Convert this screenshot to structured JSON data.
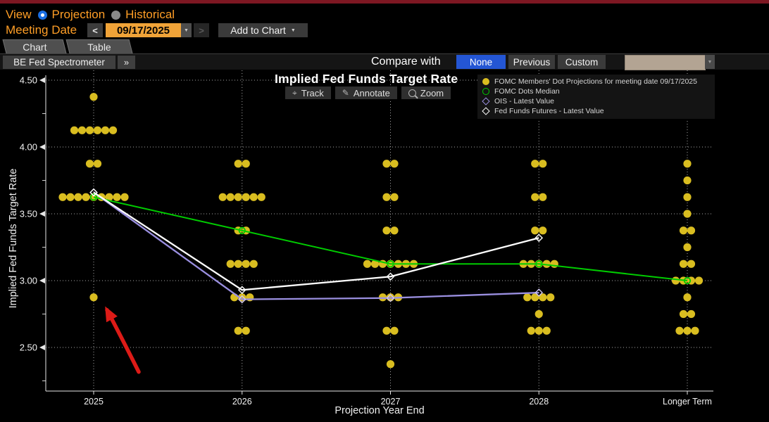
{
  "chrome": {
    "view": {
      "label": "View",
      "options": [
        {
          "label": "Projection",
          "selected": true
        },
        {
          "label": "Historical",
          "selected": false
        }
      ]
    },
    "meeting": {
      "label": "Meeting Date",
      "date_value": "09/17/2025",
      "add_button": "Add to Chart"
    },
    "tabs": [
      {
        "label": "Chart",
        "active": true
      },
      {
        "label": "Table",
        "active": false
      }
    ],
    "spectrometer_button": "BE Fed Spectrometer",
    "compare": {
      "label": "Compare with",
      "options": [
        {
          "label": "None",
          "selected": true
        },
        {
          "label": "Previous",
          "selected": false
        },
        {
          "label": "Custom",
          "selected": false
        }
      ]
    },
    "icons": {
      "prev_date": "<",
      "next_date": ">",
      "dropdown": "▼",
      "add_caret": "▼",
      "expand": "»",
      "track": "⌖",
      "annotate": "✎"
    },
    "colors": {
      "accent_bar": "#7d1722",
      "orange_text": "#ff9e26",
      "amber_field": "#f0a338",
      "selected_blue": "#2456d4",
      "tan_select": "#b3a493"
    }
  },
  "toolbar": {
    "track": "Track",
    "annotate": "Annotate",
    "zoom": "Zoom"
  },
  "chart_data": {
    "type": "scatter",
    "title": "Implied Fed Funds Target Rate",
    "xlabel": "Projection Year End",
    "ylabel": "Implied Fed Funds Target Rate",
    "categories": [
      "2025",
      "2026",
      "2027",
      "2028",
      "Longer Term"
    ],
    "ylim": [
      2.2,
      4.55
    ],
    "yticks": [
      2.5,
      3.0,
      3.5,
      4.0,
      4.5
    ],
    "yticks_minor": [
      2.25,
      2.75,
      3.25,
      3.75,
      4.25
    ],
    "grid": true,
    "legend_position": "top-right",
    "dot_color": "#d9bd20",
    "dots": {
      "2025": [
        [
          4.375,
          1
        ],
        [
          4.125,
          6
        ],
        [
          3.875,
          2
        ],
        [
          3.625,
          9
        ],
        [
          2.875,
          1
        ]
      ],
      "2026": [
        [
          3.875,
          2
        ],
        [
          3.625,
          6
        ],
        [
          3.375,
          2
        ],
        [
          3.125,
          4
        ],
        [
          2.875,
          3
        ],
        [
          2.625,
          2
        ]
      ],
      "2027": [
        [
          3.875,
          2
        ],
        [
          3.625,
          2
        ],
        [
          3.375,
          2
        ],
        [
          3.125,
          7
        ],
        [
          2.875,
          3
        ],
        [
          2.625,
          2
        ],
        [
          2.375,
          1
        ]
      ],
      "2028": [
        [
          3.875,
          2
        ],
        [
          3.625,
          2
        ],
        [
          3.375,
          2
        ],
        [
          3.125,
          5
        ],
        [
          2.875,
          4
        ],
        [
          2.75,
          1
        ],
        [
          2.625,
          3
        ]
      ],
      "Longer Term": [
        [
          3.875,
          1
        ],
        [
          3.75,
          1
        ],
        [
          3.625,
          1
        ],
        [
          3.5,
          1
        ],
        [
          3.375,
          2
        ],
        [
          3.25,
          1
        ],
        [
          3.125,
          2
        ],
        [
          3.0,
          4
        ],
        [
          2.875,
          1
        ],
        [
          2.75,
          2
        ],
        [
          2.625,
          3
        ]
      ]
    },
    "series": [
      {
        "name": "FOMC Members' Dot Projections for meeting date 09/17/2025",
        "type": "dots",
        "color": "#d9bd20",
        "marker": "filled-circle"
      },
      {
        "name": "FOMC Dots Median",
        "type": "line",
        "color": "#00cc00",
        "marker": "open-circle",
        "values": [
          3.625,
          3.375,
          3.125,
          3.125,
          3.0
        ]
      },
      {
        "name": "OIS - Latest Value",
        "type": "line",
        "color": "#9a8fe0",
        "marker": "open-diamond",
        "values": [
          3.66,
          2.86,
          2.87,
          2.91,
          null
        ]
      },
      {
        "name": "Fed Funds Futures - Latest Value",
        "type": "line",
        "color": "#ffffff",
        "marker": "open-diamond",
        "values": [
          3.66,
          2.93,
          3.03,
          3.32,
          null
        ]
      }
    ],
    "annotation": {
      "type": "arrow",
      "color": "#dd1b17",
      "points_to": {
        "category": "2025",
        "value": 2.875
      }
    }
  }
}
